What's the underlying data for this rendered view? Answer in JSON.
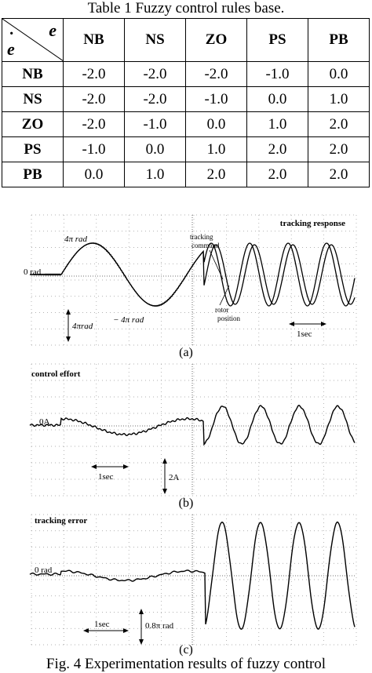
{
  "table": {
    "caption": "Table 1 Fuzzy control rules base.",
    "corner_col_var": "e",
    "corner_row_var": "e",
    "columns": [
      "NB",
      "NS",
      "ZO",
      "PS",
      "PB"
    ],
    "rows": [
      {
        "label": "NB",
        "values": [
          "-2.0",
          "-2.0",
          "-2.0",
          "-1.0",
          "0.0"
        ]
      },
      {
        "label": "NS",
        "values": [
          "-2.0",
          "-2.0",
          "-1.0",
          "0.0",
          "1.0"
        ]
      },
      {
        "label": "ZO",
        "values": [
          "-2.0",
          "-1.0",
          "0.0",
          "1.0",
          "2.0"
        ]
      },
      {
        "label": "PS",
        "values": [
          "-1.0",
          "0.0",
          "1.0",
          "2.0",
          "2.0"
        ]
      },
      {
        "label": "PB",
        "values": [
          "0.0",
          "1.0",
          "2.0",
          "2.0",
          "2.0"
        ]
      }
    ]
  },
  "figure": {
    "caption": "Fig. 4 Experimentation results of fuzzy control",
    "panels": [
      {
        "label": "(a)",
        "title": "tracking response",
        "zero_label": "0 rad",
        "pos_peak_label": "4π rad",
        "neg_peak_label": "− 4π rad",
        "scale_label": "4πrad",
        "time_label": "1sec",
        "command_label_1": "tracking",
        "command_label_2": "command",
        "rotor_label_1": "rotor",
        "rotor_label_2": "position"
      },
      {
        "label": "(b)",
        "title": "control effort",
        "zero_label": "0A",
        "scale_label": "2A",
        "time_label": "1sec"
      },
      {
        "label": "(c)",
        "title": "tracking error",
        "zero_label": "0 rad",
        "scale_label": "0.8π rad",
        "time_label": "1sec"
      }
    ]
  }
}
